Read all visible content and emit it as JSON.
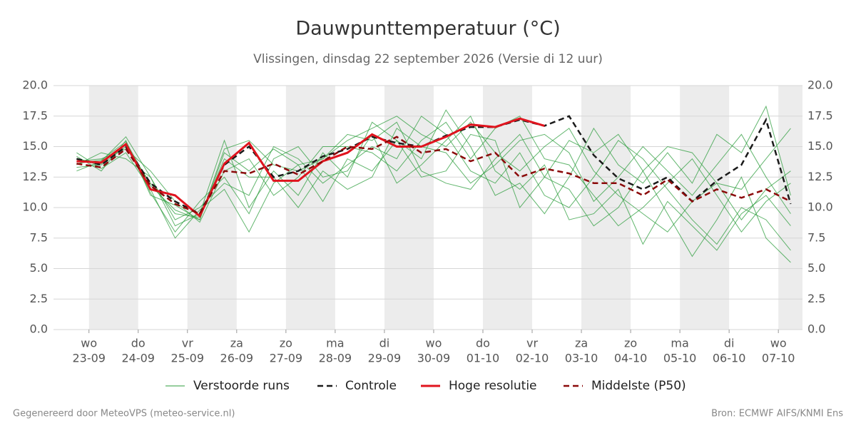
{
  "chart_data": {
    "type": "line",
    "title": "Dauwpunttemperatuur (°C)",
    "subtitle": "Vlissingen, dinsdag 22 september 2026 (Versie di 12 uur)",
    "footer_left": "Gegenereerd door MeteoVPS (meteo-service.nl)",
    "footer_right": "Bron: ECMWF AIFS/KNMI Ens",
    "xlim": [
      -0.72,
      14.49
    ],
    "xticks": [
      {
        "value": 0,
        "label": "wo"
      },
      {
        "value": 1,
        "label": "do"
      },
      {
        "value": 2,
        "label": "vr"
      },
      {
        "value": 3,
        "label": "za"
      },
      {
        "value": 4,
        "label": "zo"
      },
      {
        "value": 5,
        "label": "ma"
      },
      {
        "value": 6,
        "label": "di"
      },
      {
        "value": 7,
        "label": "wo"
      },
      {
        "value": 8,
        "label": "do"
      },
      {
        "value": 9,
        "label": "vr"
      },
      {
        "value": 10,
        "label": "za"
      },
      {
        "value": 11,
        "label": "zo"
      },
      {
        "value": 12,
        "label": "ma"
      },
      {
        "value": 13,
        "label": "di"
      },
      {
        "value": 14,
        "label": "wo"
      }
    ],
    "xtick_dates": [
      "23-09",
      "24-09",
      "25-09",
      "26-09",
      "27-09",
      "28-09",
      "29-09",
      "30-09",
      "01-10",
      "02-10",
      "03-10",
      "04-10",
      "05-10",
      "06-10",
      "07-10"
    ],
    "ylim": [
      0,
      20
    ],
    "yticks": [
      {
        "value": 0,
        "label": "0.0"
      },
      {
        "value": 2.5,
        "label": "2.5"
      },
      {
        "value": 5,
        "label": "5.0"
      },
      {
        "value": 7.5,
        "label": "7.5"
      },
      {
        "value": 10,
        "label": "10.0"
      },
      {
        "value": 12.5,
        "label": "12.5"
      },
      {
        "value": 15,
        "label": "15.0"
      },
      {
        "value": 17.5,
        "label": "17.5"
      },
      {
        "value": 20,
        "label": "20.0"
      }
    ],
    "grid": true,
    "x": [
      -0.25,
      0.25,
      0.75,
      1.25,
      1.75,
      2.25,
      2.75,
      3.25,
      3.75,
      4.25,
      4.75,
      5.25,
      5.75,
      6.25,
      6.75,
      7.25,
      7.75,
      8.25,
      8.75,
      9.25,
      9.75,
      10.25,
      10.75,
      11.25,
      11.75,
      12.25,
      12.75,
      13.25,
      13.75,
      14.25
    ],
    "ensemble": {
      "name": "Verstoorde runs",
      "color": "#2e9e3e",
      "members": [
        [
          14.2,
          13.0,
          15.5,
          11.0,
          10.2,
          9.0,
          14.5,
          13.0,
          14.8,
          13.5,
          14.0,
          15.5,
          16.5,
          17.5,
          16.0,
          15.0,
          17.0,
          14.5,
          13.0,
          15.0,
          16.5,
          13.0,
          11.0,
          9.5,
          8.0,
          10.5,
          12.0,
          9.0,
          11.5,
          13.0
        ],
        [
          13.5,
          14.5,
          14.0,
          12.5,
          9.0,
          10.0,
          12.0,
          11.0,
          15.0,
          14.0,
          12.0,
          13.5,
          15.0,
          14.0,
          17.5,
          16.0,
          13.0,
          12.0,
          14.5,
          11.0,
          10.0,
          12.5,
          15.5,
          14.0,
          11.5,
          9.0,
          7.0,
          10.0,
          9.0,
          6.5
        ],
        [
          13.0,
          13.8,
          15.8,
          12.5,
          8.5,
          9.5,
          15.5,
          10.0,
          13.0,
          11.0,
          14.5,
          12.5,
          17.0,
          15.5,
          14.0,
          18.0,
          15.0,
          11.0,
          12.0,
          9.5,
          12.5,
          16.5,
          13.5,
          12.0,
          14.5,
          12.0,
          16.0,
          14.5,
          18.3,
          11.0
        ],
        [
          14.5,
          13.2,
          14.5,
          11.5,
          7.5,
          9.8,
          11.5,
          8.0,
          12.0,
          13.5,
          10.5,
          14.0,
          13.0,
          15.5,
          12.5,
          13.0,
          16.0,
          15.5,
          10.0,
          12.5,
          11.5,
          8.5,
          10.0,
          13.0,
          9.5,
          6.0,
          9.0,
          12.5,
          7.5,
          5.5
        ],
        [
          13.8,
          14.0,
          14.8,
          13.0,
          10.5,
          8.8,
          13.0,
          14.0,
          11.0,
          12.5,
          15.0,
          15.0,
          14.5,
          13.0,
          15.5,
          17.0,
          14.0,
          16.5,
          17.5,
          14.0,
          13.5,
          11.0,
          8.5,
          10.0,
          12.0,
          14.0,
          11.0,
          8.0,
          10.5,
          12.0
        ],
        [
          13.3,
          13.5,
          15.0,
          12.0,
          9.5,
          9.2,
          14.0,
          12.5,
          12.5,
          10.0,
          13.0,
          11.5,
          12.5,
          16.5,
          15.0,
          14.5,
          12.0,
          13.5,
          15.5,
          16.0,
          14.5,
          10.5,
          12.5,
          15.0,
          13.0,
          11.0,
          13.5,
          16.0,
          12.5,
          9.5
        ],
        [
          14.0,
          13.6,
          15.2,
          11.2,
          8.0,
          10.5,
          12.5,
          9.5,
          14.0,
          15.0,
          12.5,
          13.0,
          16.0,
          12.0,
          13.5,
          15.5,
          17.5,
          13.0,
          11.5,
          13.5,
          9.0,
          9.5,
          11.5,
          7.0,
          10.5,
          8.5,
          6.5,
          9.5,
          11.0,
          8.5
        ],
        [
          13.6,
          13.9,
          15.4,
          11.8,
          9.8,
          9.0,
          14.8,
          15.5,
          13.5,
          13.0,
          14.0,
          16.0,
          15.5,
          17.0,
          13.0,
          12.0,
          11.5,
          14.0,
          16.0,
          12.5,
          15.5,
          14.5,
          16.0,
          13.0,
          15.0,
          14.5,
          12.0,
          11.5,
          14.0,
          16.5
        ]
      ]
    },
    "series": [
      {
        "name": "Controle",
        "color": "#1a1a1a",
        "style": "dashed",
        "values": [
          14.0,
          13.5,
          15.0,
          12.0,
          10.5,
          9.5,
          13.5,
          15.0,
          12.5,
          13.0,
          14.2,
          14.8,
          15.8,
          15.3,
          15.0,
          15.9,
          16.6,
          16.6,
          17.2,
          16.7,
          17.5,
          14.3,
          12.4,
          11.5,
          12.5,
          10.5,
          12.2,
          13.5,
          17.2,
          10.3
        ]
      },
      {
        "name": "Hoge resolutie",
        "color": "#e0141e",
        "style": "solid",
        "values": [
          13.8,
          13.7,
          15.2,
          11.5,
          11.0,
          9.3,
          13.6,
          15.3,
          12.2,
          12.2,
          13.8,
          14.5,
          16.0,
          15.0,
          15.0,
          15.8,
          16.8,
          16.6,
          17.3,
          16.7,
          null,
          null,
          null,
          null,
          null,
          null,
          null,
          null,
          null,
          null
        ]
      },
      {
        "name": "Middelste (P50)",
        "color": "#8b0a0a",
        "style": "dashed",
        "values": [
          13.6,
          13.3,
          14.8,
          11.8,
          10.3,
          9.5,
          13.0,
          12.8,
          13.6,
          12.7,
          13.8,
          15.0,
          14.8,
          15.8,
          14.5,
          14.8,
          13.8,
          14.5,
          12.5,
          13.2,
          12.8,
          12.0,
          12.0,
          11.0,
          12.3,
          10.5,
          11.5,
          10.8,
          11.5,
          10.5
        ]
      }
    ],
    "legend": "bottom"
  }
}
